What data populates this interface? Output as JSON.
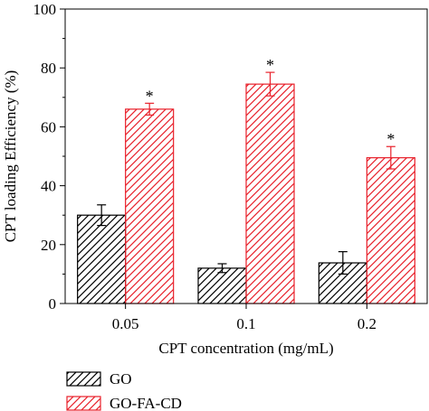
{
  "chart_data": {
    "type": "bar",
    "title": "",
    "xlabel": "CPT concentration (mg/mL)",
    "ylabel": "CPT loading Efficiency (%)",
    "ylim": [
      0,
      100
    ],
    "yticks": [
      0,
      20,
      40,
      60,
      80,
      100
    ],
    "categories": [
      "0.05",
      "0.1",
      "0.2"
    ],
    "series": [
      {
        "name": "GO",
        "color": "#000000",
        "values": [
          30,
          12,
          13.8
        ],
        "errors": [
          3.5,
          1.5,
          3.8
        ],
        "markers": [
          "",
          "",
          ""
        ]
      },
      {
        "name": "GO-FA-CD",
        "color": "#e8202a",
        "values": [
          66,
          74.5,
          49.5
        ],
        "errors": [
          2,
          4,
          3.8
        ],
        "markers": [
          "*",
          "*",
          "*"
        ]
      }
    ],
    "legend_position": "bottom-left",
    "pattern": "diagonal-hatch"
  }
}
